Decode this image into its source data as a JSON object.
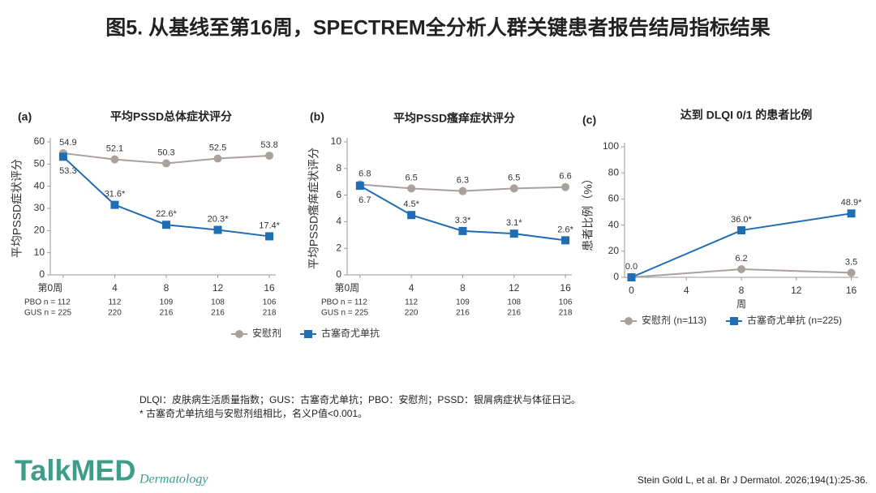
{
  "header": {
    "title": "图5. 从基线至第16周，SPECTREM全分析人群关键患者报告结局指标结果"
  },
  "footnotes": [
    "DLQI：皮肤病生活质量指数；GUS：古塞奇尤单抗；PBO：安慰剂；PSSD：银屑病症状与体征日记。",
    "* 古塞奇尤单抗组与安慰剂组相比，名义P值<0.001。"
  ],
  "logo": {
    "name": "TalkMED",
    "subtitle": "Dermatology"
  },
  "citation": "Stein Gold L, et al. Br J Dermatol. 2026;194(1):25-36.",
  "chart_data": [
    {
      "type": "line",
      "panel": "(a)",
      "title": "平均PSSD总体症状评分",
      "y_label": "平均PSSD症状评分",
      "x": [
        0,
        4,
        8,
        12,
        16
      ],
      "xlim": [
        -1,
        16.5
      ],
      "xticks": [
        {
          "value": 0,
          "label": "第0周"
        },
        4,
        8,
        12,
        16
      ],
      "ylim": [
        0,
        60
      ],
      "yticks": [
        0,
        10,
        20,
        30,
        40,
        50,
        60
      ],
      "legend": "bottom",
      "series": [
        {
          "name": "安慰剂",
          "color": "#a9a19e",
          "marker": "circle",
          "values": [
            54.9,
            52.1,
            50.3,
            52.5,
            53.8
          ]
        },
        {
          "name": "古塞奇尤单抗",
          "color": "#1f6db5",
          "marker": "square",
          "values": [
            53.3,
            31.6,
            22.6,
            20.3,
            17.4
          ],
          "value_labels": [
            "53.3",
            "31.6*",
            "22.6*",
            "20.3*",
            "17.4*"
          ]
        }
      ],
      "at_risk": [
        {
          "label": "PBO n = 112",
          "counts": [
            112,
            109,
            108,
            106
          ]
        },
        {
          "label": "GUS n = 225",
          "counts": [
            220,
            216,
            216,
            218
          ]
        }
      ]
    },
    {
      "type": "line",
      "panel": "(b)",
      "title": "平均PSSD瘙痒症状评分",
      "y_label": "平均PSSD瘙痒症状评分",
      "x": [
        0,
        4,
        8,
        12,
        16
      ],
      "xlim": [
        -1,
        16.5
      ],
      "xticks": [
        {
          "value": 0,
          "label": "第0周"
        },
        4,
        8,
        12,
        16
      ],
      "ylim": [
        0,
        10
      ],
      "yticks": [
        0,
        2,
        4,
        6,
        8,
        10
      ],
      "series": [
        {
          "name": "安慰剂",
          "color": "#a9a19e",
          "marker": "circle",
          "values": [
            6.8,
            6.5,
            6.3,
            6.5,
            6.6
          ]
        },
        {
          "name": "古塞奇尤单抗",
          "color": "#1f6db5",
          "marker": "square",
          "values": [
            6.7,
            4.5,
            3.3,
            3.1,
            2.6
          ],
          "value_labels": [
            "6.7",
            "4.5*",
            "3.3*",
            "3.1*",
            "2.6*"
          ]
        }
      ],
      "at_risk": [
        {
          "label": "PBO n = 112",
          "counts": [
            112,
            109,
            108,
            106
          ]
        },
        {
          "label": "GUS n = 225",
          "counts": [
            220,
            216,
            216,
            218
          ]
        }
      ]
    },
    {
      "type": "line",
      "panel": "(c)",
      "title": "达到 DLQI 0/1 的患者比例",
      "y_label": "患者比例（%）",
      "x_label": "周",
      "x": [
        0,
        8,
        16
      ],
      "xlim": [
        -0.5,
        16.5
      ],
      "xticks": [
        0,
        4,
        8,
        12,
        16
      ],
      "ylim": [
        0,
        100
      ],
      "yticks": [
        0,
        20,
        40,
        60,
        80,
        100
      ],
      "legend": "bottom",
      "series": [
        {
          "name": "安慰剂 (n=113)",
          "color": "#a9a19e",
          "marker": "circle",
          "values": [
            0,
            6.2,
            3.5
          ],
          "value_labels": [
            "0.0",
            "6.2",
            "3.5"
          ]
        },
        {
          "name": "古塞奇尤单抗 (n=225)",
          "color": "#1f6db5",
          "marker": "square",
          "values": [
            0,
            36.0,
            48.9
          ],
          "value_labels": [
            null,
            "36.0*",
            "48.9*"
          ]
        }
      ]
    }
  ]
}
